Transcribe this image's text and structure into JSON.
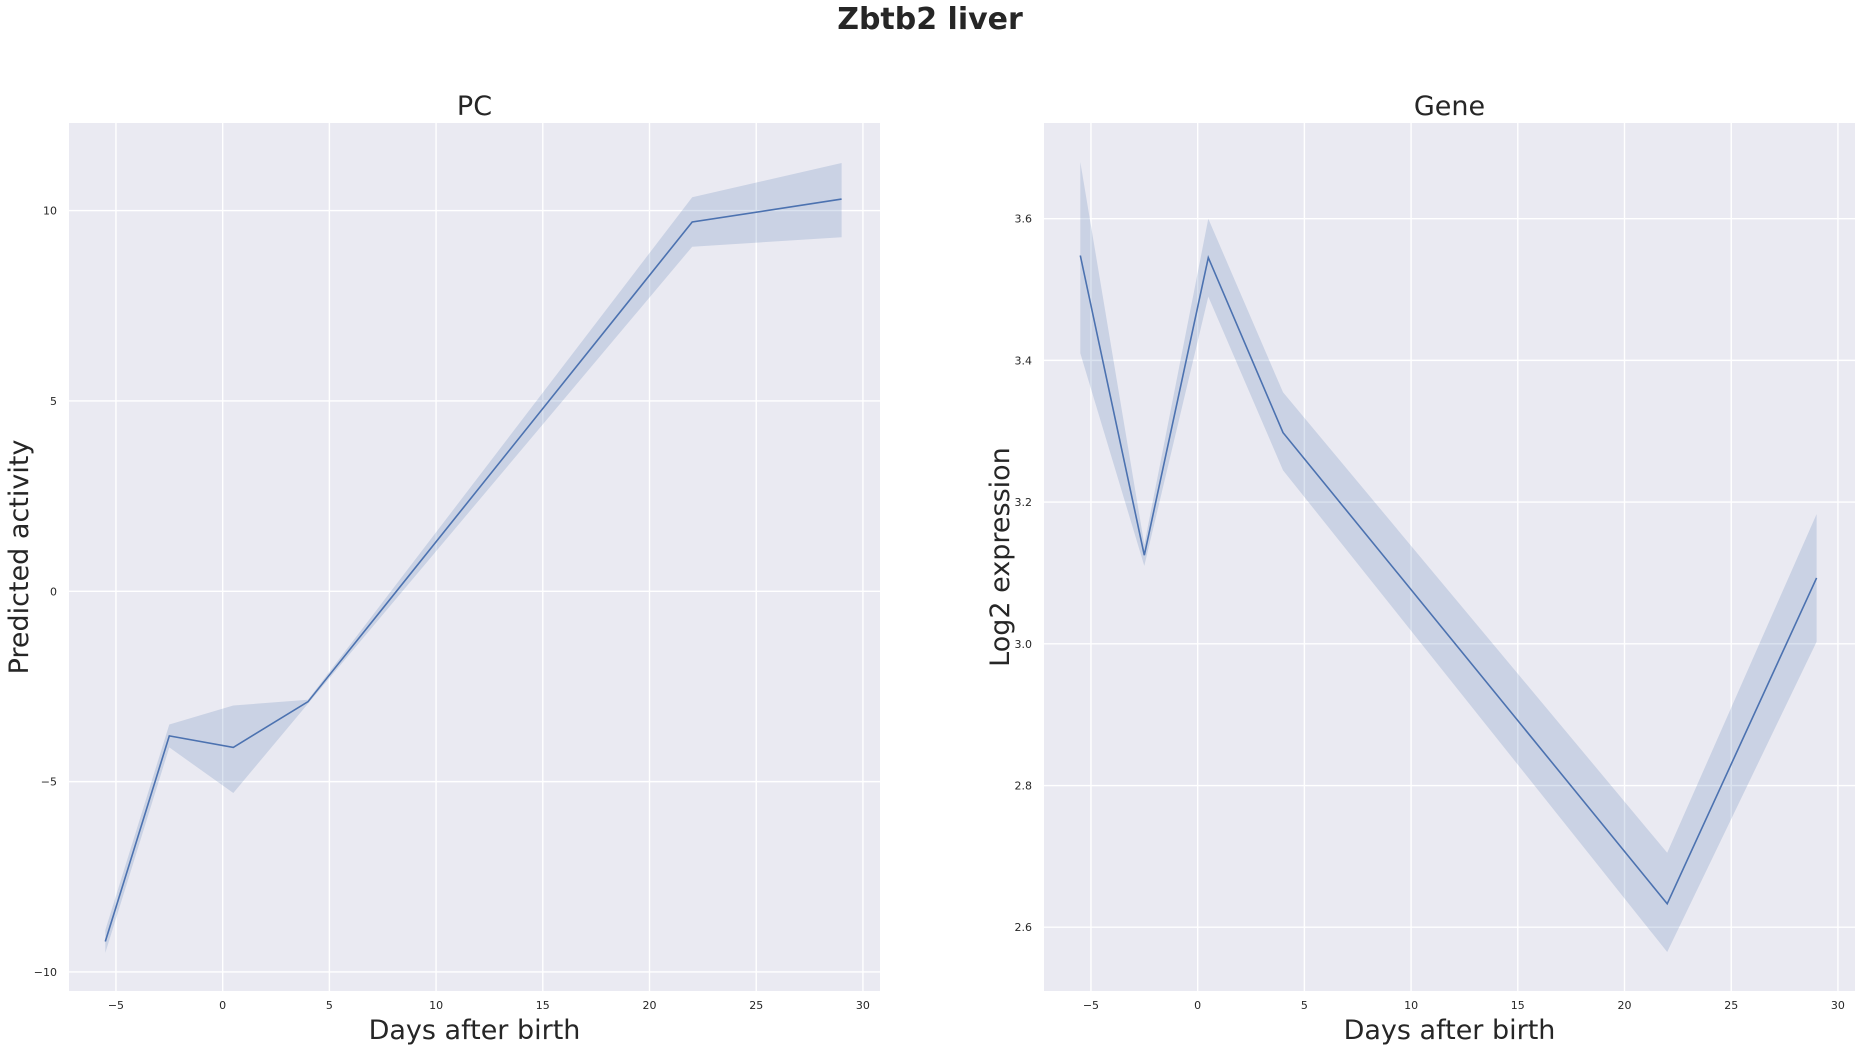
{
  "figure_title": "Zbtb2 liver",
  "colors": {
    "line": "#4c72b0",
    "band": "#4c72b0",
    "plot_background": "#eaeaf2",
    "grid": "#ffffff"
  },
  "chart_data": [
    {
      "type": "line",
      "title": "PC",
      "xlabel": "Days after birth",
      "ylabel": "Predicted activity",
      "xlim": [
        -7.2,
        30.8
      ],
      "ylim": [
        -10.5,
        12.3
      ],
      "xticks": [
        -5,
        0,
        5,
        10,
        15,
        20,
        25,
        30
      ],
      "yticks": [
        -10,
        -5,
        0,
        5,
        10
      ],
      "xtick_labels": [
        "−5",
        "0",
        "5",
        "10",
        "15",
        "20",
        "25",
        "30"
      ],
      "ytick_labels": [
        "−10",
        "−5",
        "0",
        "5",
        "10"
      ],
      "grid": true,
      "series": [
        {
          "x": [
            -5.5,
            -2.5,
            0.5,
            4,
            22,
            29
          ],
          "y": [
            -9.2,
            -3.8,
            -4.1,
            -2.9,
            9.7,
            10.3
          ],
          "ci_low": [
            -9.5,
            -4.1,
            -5.3,
            -2.95,
            9.05,
            9.3
          ],
          "ci_high": [
            -8.9,
            -3.5,
            -3.0,
            -2.85,
            10.35,
            11.25
          ]
        }
      ]
    },
    {
      "type": "line",
      "title": "Gene",
      "xlabel": "Days after birth",
      "ylabel": "Log2 expression",
      "xlim": [
        -7.2,
        30.8
      ],
      "ylim": [
        2.51,
        3.735
      ],
      "xticks": [
        -5,
        0,
        5,
        10,
        15,
        20,
        25,
        30
      ],
      "yticks": [
        2.6,
        2.8,
        3.0,
        3.2,
        3.4,
        3.6
      ],
      "xtick_labels": [
        "−5",
        "0",
        "5",
        "10",
        "15",
        "20",
        "25",
        "30"
      ],
      "ytick_labels": [
        "2.6",
        "2.8",
        "3.0",
        "3.2",
        "3.4",
        "3.6"
      ],
      "grid": true,
      "series": [
        {
          "x": [
            -5.5,
            -2.5,
            0.5,
            4,
            22,
            29
          ],
          "y": [
            3.548,
            3.125,
            3.545,
            3.298,
            2.633,
            3.093
          ],
          "ci_low": [
            3.41,
            3.11,
            3.49,
            3.245,
            2.565,
            3.003
          ],
          "ci_high": [
            3.68,
            3.14,
            3.6,
            3.355,
            2.705,
            3.183
          ]
        }
      ]
    }
  ]
}
